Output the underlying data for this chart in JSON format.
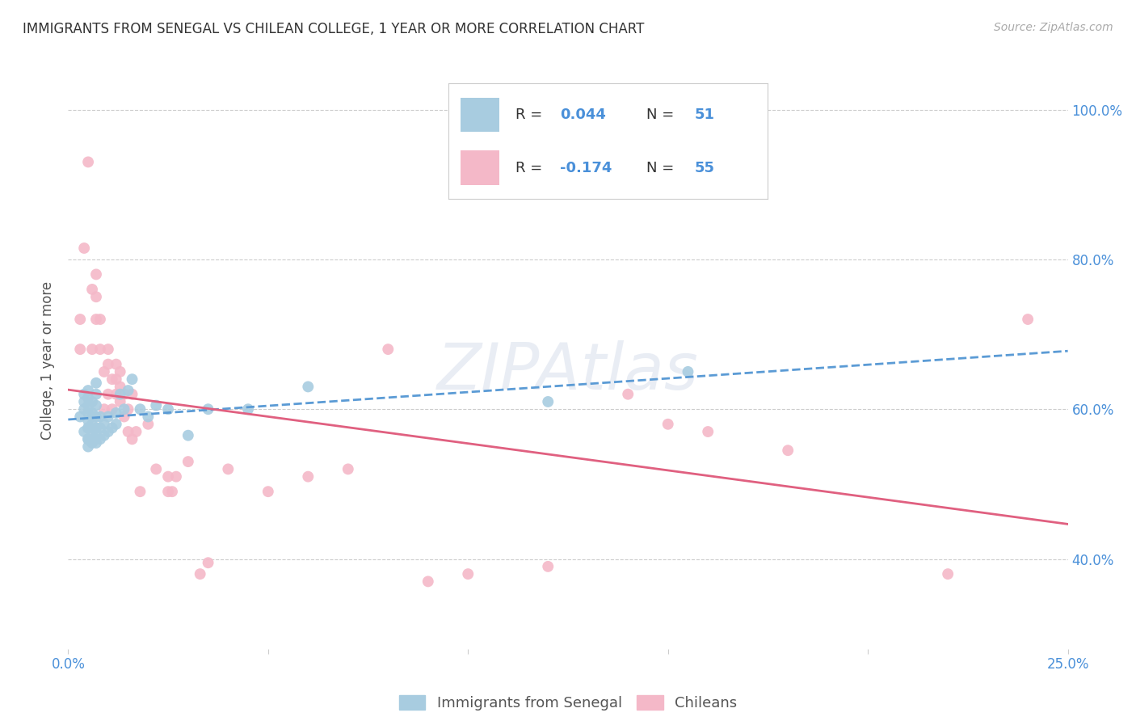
{
  "title": "IMMIGRANTS FROM SENEGAL VS CHILEAN COLLEGE, 1 YEAR OR MORE CORRELATION CHART",
  "source_text": "Source: ZipAtlas.com",
  "ylabel": "College, 1 year or more",
  "xlim": [
    0.0,
    0.25
  ],
  "ylim": [
    0.28,
    1.05
  ],
  "xtick_positions": [
    0.0,
    0.05,
    0.1,
    0.15,
    0.2,
    0.25
  ],
  "xticklabels": [
    "0.0%",
    "",
    "",
    "",
    "",
    "25.0%"
  ],
  "ytick_positions": [
    0.4,
    0.6,
    0.8,
    1.0
  ],
  "yticklabels": [
    "40.0%",
    "60.0%",
    "80.0%",
    "100.0%"
  ],
  "legend_labels": [
    "Immigrants from Senegal",
    "Chileans"
  ],
  "blue_R_label": "R = 0.044",
  "blue_N_label": "N = 51",
  "pink_R_label": "R = -0.174",
  "pink_N_label": "N = 55",
  "blue_color": "#a8cce0",
  "pink_color": "#f4b8c8",
  "blue_line_color": "#5b9bd5",
  "pink_line_color": "#e06080",
  "axis_label_color": "#4a90d9",
  "title_color": "#333333",
  "source_color": "#aaaaaa",
  "grid_color": "#cccccc",
  "background_color": "#ffffff",
  "watermark_text": "ZIPAtlas",
  "blue_scatter_x": [
    0.003,
    0.004,
    0.004,
    0.004,
    0.004,
    0.005,
    0.005,
    0.005,
    0.005,
    0.005,
    0.005,
    0.005,
    0.005,
    0.005,
    0.005,
    0.006,
    0.006,
    0.006,
    0.006,
    0.006,
    0.007,
    0.007,
    0.007,
    0.007,
    0.007,
    0.007,
    0.007,
    0.008,
    0.008,
    0.008,
    0.009,
    0.009,
    0.01,
    0.01,
    0.011,
    0.012,
    0.012,
    0.013,
    0.014,
    0.015,
    0.016,
    0.018,
    0.02,
    0.022,
    0.025,
    0.03,
    0.035,
    0.045,
    0.06,
    0.12,
    0.155
  ],
  "blue_scatter_y": [
    0.59,
    0.6,
    0.61,
    0.62,
    0.57,
    0.55,
    0.56,
    0.575,
    0.585,
    0.595,
    0.605,
    0.615,
    0.625,
    0.56,
    0.575,
    0.555,
    0.568,
    0.58,
    0.595,
    0.61,
    0.555,
    0.565,
    0.575,
    0.59,
    0.605,
    0.62,
    0.635,
    0.56,
    0.575,
    0.59,
    0.565,
    0.58,
    0.57,
    0.59,
    0.575,
    0.58,
    0.595,
    0.62,
    0.6,
    0.625,
    0.64,
    0.6,
    0.59,
    0.605,
    0.6,
    0.565,
    0.6,
    0.6,
    0.63,
    0.61,
    0.65
  ],
  "pink_scatter_x": [
    0.003,
    0.003,
    0.004,
    0.005,
    0.006,
    0.006,
    0.007,
    0.007,
    0.007,
    0.008,
    0.008,
    0.009,
    0.009,
    0.01,
    0.01,
    0.01,
    0.011,
    0.011,
    0.012,
    0.012,
    0.012,
    0.013,
    0.013,
    0.013,
    0.014,
    0.014,
    0.015,
    0.015,
    0.016,
    0.016,
    0.017,
    0.018,
    0.02,
    0.022,
    0.025,
    0.025,
    0.026,
    0.027,
    0.03,
    0.033,
    0.035,
    0.04,
    0.05,
    0.06,
    0.07,
    0.08,
    0.09,
    0.1,
    0.12,
    0.14,
    0.15,
    0.16,
    0.18,
    0.22,
    0.24
  ],
  "pink_scatter_y": [
    0.68,
    0.72,
    0.815,
    0.93,
    0.68,
    0.76,
    0.72,
    0.75,
    0.78,
    0.68,
    0.72,
    0.6,
    0.65,
    0.62,
    0.66,
    0.68,
    0.6,
    0.64,
    0.62,
    0.64,
    0.66,
    0.61,
    0.63,
    0.65,
    0.59,
    0.62,
    0.57,
    0.6,
    0.56,
    0.62,
    0.57,
    0.49,
    0.58,
    0.52,
    0.49,
    0.51,
    0.49,
    0.51,
    0.53,
    0.38,
    0.395,
    0.52,
    0.49,
    0.51,
    0.52,
    0.68,
    0.37,
    0.38,
    0.39,
    0.62,
    0.58,
    0.57,
    0.545,
    0.38,
    0.72
  ]
}
